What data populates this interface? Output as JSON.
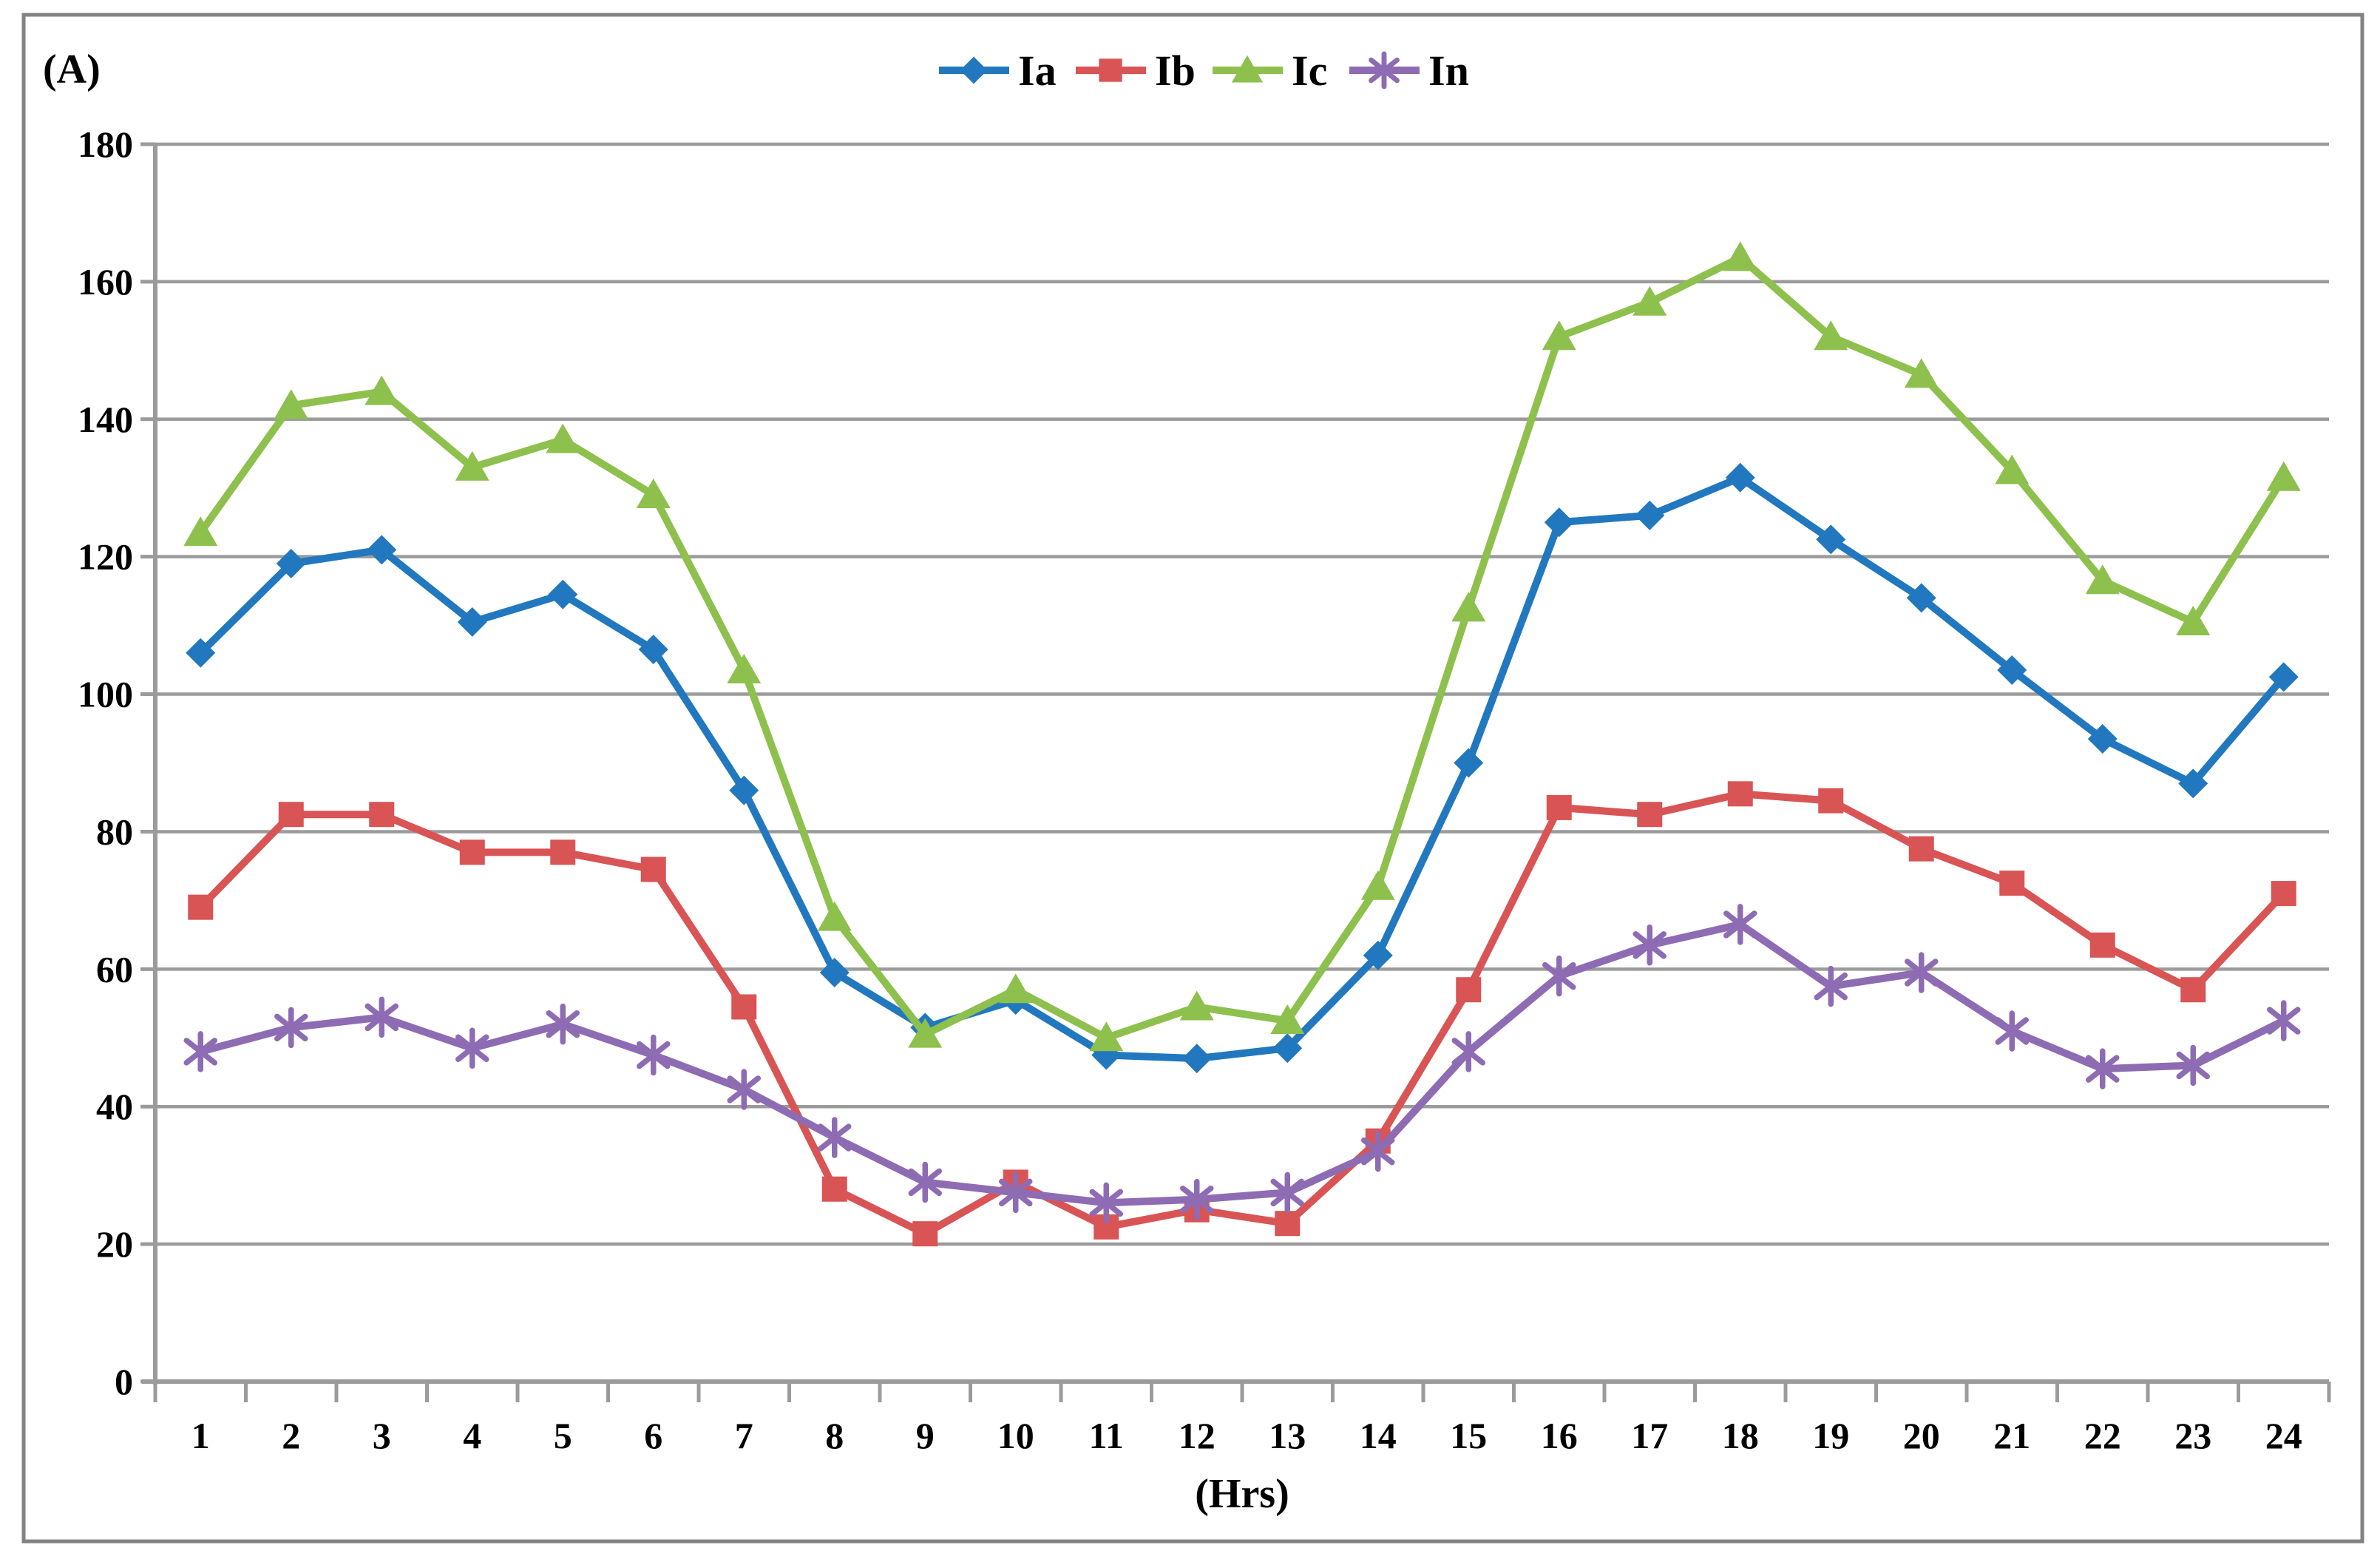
{
  "chart_data": {
    "type": "line",
    "title": "",
    "ylabel": "(A)",
    "xlabel": "(Hrs)",
    "x": [
      1,
      2,
      3,
      4,
      5,
      6,
      7,
      8,
      9,
      10,
      11,
      12,
      13,
      14,
      15,
      16,
      17,
      18,
      19,
      20,
      21,
      22,
      23,
      24
    ],
    "ylim": [
      0,
      180
    ],
    "ytick_step": 20,
    "grid": "horizontal",
    "legend_position": "top-center",
    "series": [
      {
        "name": "Ia",
        "marker": "diamond",
        "color": "#2278BE",
        "values": [
          106,
          119,
          121,
          110.5,
          114.5,
          106.5,
          86,
          59.5,
          51.5,
          55.5,
          47.5,
          47,
          48.5,
          62,
          90,
          125,
          126,
          131.5,
          122.5,
          114,
          103.5,
          93.5,
          87,
          102.5
        ]
      },
      {
        "name": "Ib",
        "marker": "square",
        "color": "#D95454",
        "values": [
          69,
          82.5,
          82.5,
          77,
          77,
          74.5,
          54.5,
          28,
          21.5,
          29,
          22.5,
          25,
          23,
          35,
          57,
          83.5,
          82.5,
          85.5,
          84.5,
          77.5,
          72.5,
          63.5,
          57,
          71
        ]
      },
      {
        "name": "Ic",
        "marker": "triangle",
        "color": "#8EC04E",
        "values": [
          123.5,
          142,
          144,
          133,
          137,
          129,
          103.5,
          67.5,
          50.5,
          57,
          50,
          54.5,
          52.5,
          72,
          112.5,
          152,
          157,
          163.5,
          152,
          146.5,
          132.5,
          116.5,
          110.5,
          131.5
        ]
      },
      {
        "name": "In",
        "marker": "asterisk",
        "color": "#8E6CB3",
        "values": [
          48,
          51.5,
          53,
          48.5,
          52,
          47.5,
          42.5,
          35.5,
          29,
          27.5,
          26,
          26.5,
          27.5,
          33.5,
          48,
          59,
          63.5,
          66.5,
          57.5,
          59.5,
          51,
          45.5,
          46,
          52.5
        ]
      }
    ],
    "colors": {
      "grid": "#9B9B9B",
      "axis": "#9B9B9B",
      "border": "#828282",
      "text": "#000000"
    }
  }
}
